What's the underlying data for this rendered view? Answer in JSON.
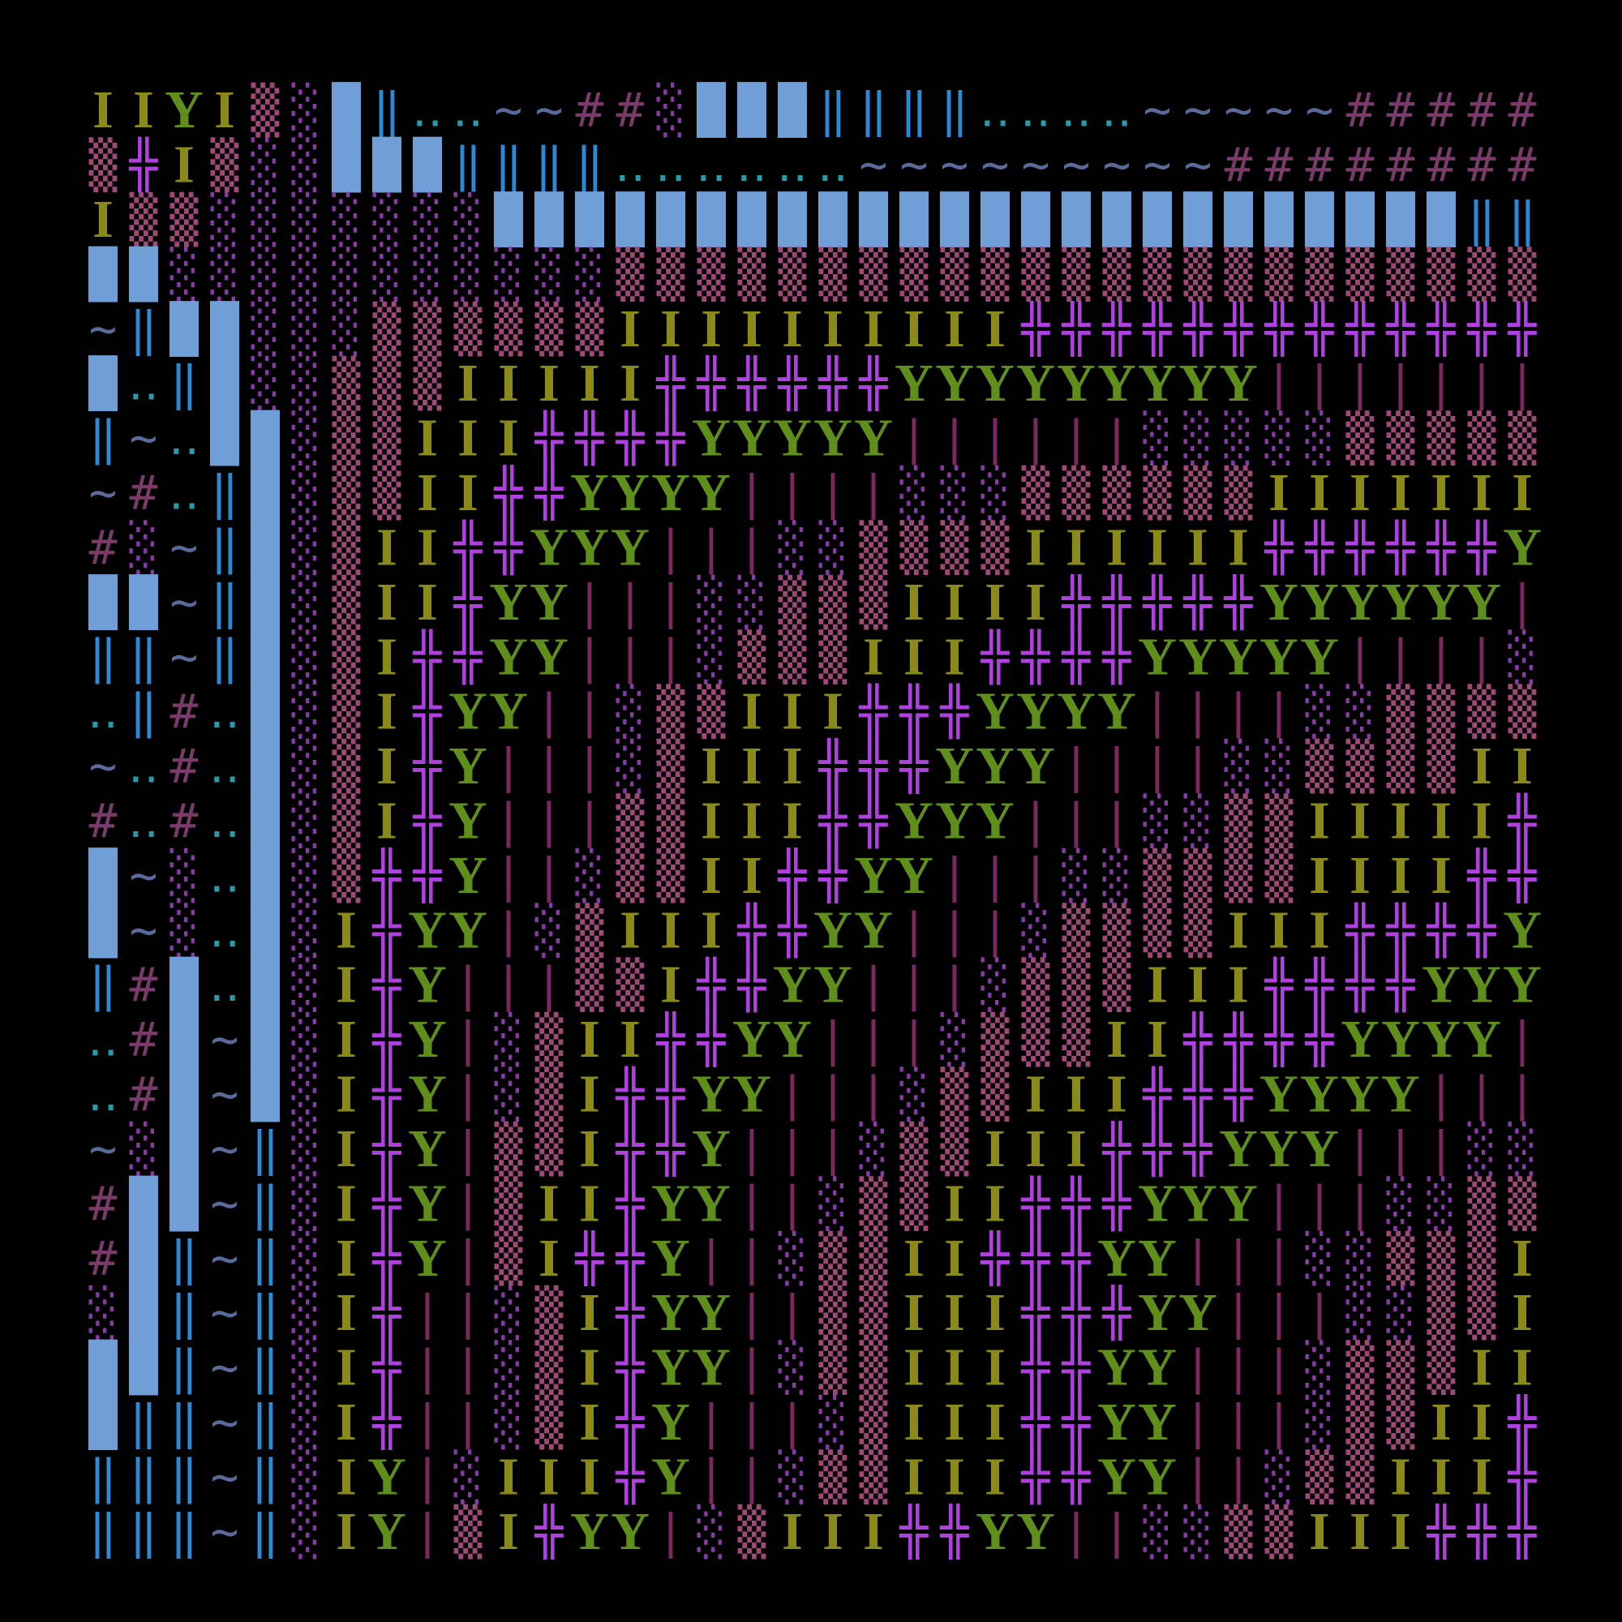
{
  "grid": {
    "rows": [
      "IIYI▒░█‖‥‥~~##░███‖‖‖‖‥‥‥‥~~~~~#####",
      "▒╬I▒░░███‖‖‖‖‥‥‥‥‥‥~~~~~~~~~########",
      "I▒▒░░░░░░░████████████████████████‖‖",
      "██░░░░░░░░░░░▒▒▒▒▒▒▒▒▒▒▒▒▒▒▒▒▒▒▒▒▒▒▒",
      "~‖██░░░▒▒▒▒▒▒IIIIIIIIII╬╬╬╬╬╬╬╬╬╬╬╬╬",
      "█‥‖█░░▒▒▒IIIII╬╬╬╬╬╬YYYYYYYYY|||||||",
      "‖~‥██░▒▒III╬╬╬╬YYYYY||||||░░░░░▒▒▒▒▒",
      "~#‥‖█░▒▒II╬╬YYYY||||░░░▒▒▒▒▒▒IIIIIII",
      "#░~‖█░▒II╬╬YYY|||░░▒▒▒▒IIIIII╬╬╬╬╬╬Y",
      "██~‖█░▒II╬YY|||░░▒▒▒IIII╬╬╬╬╬YYYYYY|",
      "‖‖~‖█░▒I╬╬YY|||░▒▒▒III╬╬╬╬YYYYY||||░",
      "‥‖#‥█░▒I╬YY||░▒▒III╬╬╬YYYY||||░░▒▒▒▒",
      "~‥#‥█░▒I╬Y|||░▒III╬╬╬YYY||||░░▒▒▒▒II",
      "#‥#‥█░▒I╬Y|||▒▒III╬╬YYY|||░░▒▒IIIII╬",
      "█~░‥█░▒╬╬Y||░▒▒II╬╬YY|||░░▒▒▒▒IIII╬╬",
      "█~░‥█░I╬YY|░▒III╬╬YY|||░▒▒▒▒III╬╬╬╬Y",
      "‖#█‥█░I╬Y|||▒▒I╬╬YY|||░▒▒▒III╬╬╬╬YYY",
      "‥#█~█░I╬Y|░▒II╬╬YY|||░▒▒▒II╬╬╬╬YYYY|",
      "‥#█~█░I╬Y|░▒I╬╬YY|||░▒▒III╬╬╬YYYY|||",
      "~░█~‖░I╬Y|▒▒I╬╬Y|||░▒▒III╬╬╬YYY|||░░",
      "#██~‖░I╬Y|▒II╬YY||░▒▒II╬╬╬YYY|||░░▒▒",
      "#█‖~‖░I╬Y|▒I╬╬Y||░▒▒II╬╬╬YY|||░░▒▒▒I",
      "░█‖~‖░I╬||░▒I╬YY||▒▒III╬╬╬YY|||░░▒▒I",
      "██‖~‖░I╬||░▒I╬YY|░▒▒III╬╬YY|||░▒▒▒II",
      "█‖‖~‖░I╬||░▒I╬Y|||░▒III╬╬YY|||░▒▒II╬",
      "‖‖‖~‖░IY|░III╬Y||░▒▒III╬╬YY||░▒▒III╬",
      "‖‖‖~‖░IY|▒I╬YY|░▒III╬╬YY||░░▒▒III╬╬╬"
    ],
    "palette": {
      "I": "#8a8a1a",
      "Y": "#5f8f1a",
      "╬": "#b040e0",
      "|": "#7a2a5e",
      "▒": "#a04878",
      "░": "#8a3aa8",
      "█": "#6f9fd6",
      "‖": "#2a8ad8",
      "‥": "#2a9aaa",
      "~": "#5a6a9a",
      "#": "#7a3a6a"
    }
  }
}
